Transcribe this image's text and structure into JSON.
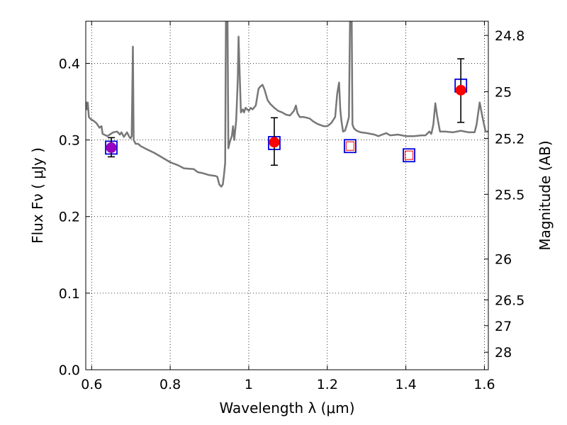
{
  "chart_data": {
    "type": "scatter",
    "xlabel": "Wavelength  λ (μm)",
    "ylabel": "Flux  Fν  ( μJy )",
    "ylabel_right": "Magnitude (AB)",
    "xlim": [
      0.585,
      1.61
    ],
    "ylim": [
      0.0,
      0.455
    ],
    "grid": true,
    "x_ticks": [
      0.6,
      0.8,
      1.0,
      1.2,
      1.4,
      1.6
    ],
    "x_tick_labels": [
      "0.6",
      "0.8",
      "1",
      "1.2",
      "1.4",
      "1.6"
    ],
    "y_ticks": [
      0.0,
      0.1,
      0.2,
      0.3,
      0.4
    ],
    "y_tick_labels": [
      "0.0",
      "0.1",
      "0.2",
      "0.3",
      "0.4"
    ],
    "mag_ticks": [
      24.8,
      25,
      25.2,
      25.5,
      26,
      26.5,
      27,
      28
    ],
    "mag_tick_labels": [
      "24.8",
      "25",
      "25.2",
      "25.5",
      "26",
      "26.5",
      "27",
      "28"
    ],
    "series": [
      {
        "kind": "line",
        "color": "#777777",
        "points": [
          [
            0.585,
            0.35
          ],
          [
            0.588,
            0.34
          ],
          [
            0.59,
            0.349
          ],
          [
            0.593,
            0.33
          ],
          [
            0.598,
            0.327
          ],
          [
            0.605,
            0.325
          ],
          [
            0.612,
            0.322
          ],
          [
            0.62,
            0.316
          ],
          [
            0.625,
            0.318
          ],
          [
            0.628,
            0.308
          ],
          [
            0.64,
            0.305
          ],
          [
            0.655,
            0.31
          ],
          [
            0.665,
            0.311
          ],
          [
            0.672,
            0.307
          ],
          [
            0.676,
            0.31
          ],
          [
            0.682,
            0.304
          ],
          [
            0.69,
            0.31
          ],
          [
            0.696,
            0.304
          ],
          [
            0.699,
            0.302
          ],
          [
            0.702,
            0.305
          ],
          [
            0.704,
            0.38
          ],
          [
            0.705,
            0.422
          ],
          [
            0.707,
            0.3
          ],
          [
            0.712,
            0.295
          ],
          [
            0.718,
            0.295
          ],
          [
            0.725,
            0.292
          ],
          [
            0.74,
            0.288
          ],
          [
            0.76,
            0.283
          ],
          [
            0.78,
            0.277
          ],
          [
            0.8,
            0.271
          ],
          [
            0.82,
            0.267
          ],
          [
            0.835,
            0.263
          ],
          [
            0.86,
            0.262
          ],
          [
            0.87,
            0.258
          ],
          [
            0.88,
            0.257
          ],
          [
            0.9,
            0.254
          ],
          [
            0.915,
            0.253
          ],
          [
            0.92,
            0.252
          ],
          [
            0.925,
            0.242
          ],
          [
            0.93,
            0.239
          ],
          [
            0.934,
            0.242
          ],
          [
            0.937,
            0.255
          ],
          [
            0.94,
            0.27
          ],
          [
            0.942,
            0.46
          ],
          [
            0.946,
            0.46
          ],
          [
            0.948,
            0.289
          ],
          [
            0.952,
            0.298
          ],
          [
            0.957,
            0.305
          ],
          [
            0.96,
            0.318
          ],
          [
            0.963,
            0.3
          ],
          [
            0.968,
            0.325
          ],
          [
            0.97,
            0.35
          ],
          [
            0.972,
            0.38
          ],
          [
            0.974,
            0.435
          ],
          [
            0.976,
            0.4
          ],
          [
            0.98,
            0.336
          ],
          [
            0.985,
            0.34
          ],
          [
            0.988,
            0.336
          ],
          [
            0.992,
            0.342
          ],
          [
            1.0,
            0.338
          ],
          [
            1.005,
            0.342
          ],
          [
            1.01,
            0.34
          ],
          [
            1.018,
            0.345
          ],
          [
            1.025,
            0.367
          ],
          [
            1.03,
            0.37
          ],
          [
            1.035,
            0.372
          ],
          [
            1.04,
            0.366
          ],
          [
            1.048,
            0.352
          ],
          [
            1.055,
            0.347
          ],
          [
            1.065,
            0.342
          ],
          [
            1.075,
            0.338
          ],
          [
            1.085,
            0.336
          ],
          [
            1.095,
            0.333
          ],
          [
            1.105,
            0.332
          ],
          [
            1.115,
            0.338
          ],
          [
            1.12,
            0.345
          ],
          [
            1.124,
            0.335
          ],
          [
            1.13,
            0.33
          ],
          [
            1.14,
            0.33
          ],
          [
            1.155,
            0.328
          ],
          [
            1.165,
            0.324
          ],
          [
            1.175,
            0.321
          ],
          [
            1.19,
            0.318
          ],
          [
            1.2,
            0.318
          ],
          [
            1.21,
            0.322
          ],
          [
            1.22,
            0.33
          ],
          [
            1.225,
            0.36
          ],
          [
            1.23,
            0.375
          ],
          [
            1.233,
            0.34
          ],
          [
            1.236,
            0.325
          ],
          [
            1.24,
            0.311
          ],
          [
            1.245,
            0.312
          ],
          [
            1.25,
            0.32
          ],
          [
            1.255,
            0.33
          ],
          [
            1.258,
            0.46
          ],
          [
            1.262,
            0.46
          ],
          [
            1.264,
            0.32
          ],
          [
            1.268,
            0.315
          ],
          [
            1.275,
            0.312
          ],
          [
            1.285,
            0.31
          ],
          [
            1.3,
            0.309
          ],
          [
            1.32,
            0.307
          ],
          [
            1.33,
            0.305
          ],
          [
            1.34,
            0.307
          ],
          [
            1.35,
            0.309
          ],
          [
            1.36,
            0.306
          ],
          [
            1.38,
            0.307
          ],
          [
            1.4,
            0.305
          ],
          [
            1.42,
            0.305
          ],
          [
            1.44,
            0.306
          ],
          [
            1.45,
            0.306
          ],
          [
            1.46,
            0.311
          ],
          [
            1.465,
            0.308
          ],
          [
            1.47,
            0.32
          ],
          [
            1.475,
            0.348
          ],
          [
            1.48,
            0.33
          ],
          [
            1.487,
            0.311
          ],
          [
            1.5,
            0.311
          ],
          [
            1.52,
            0.31
          ],
          [
            1.54,
            0.312
          ],
          [
            1.56,
            0.31
          ],
          [
            1.575,
            0.31
          ],
          [
            1.58,
            0.32
          ],
          [
            1.588,
            0.349
          ],
          [
            1.595,
            0.33
          ],
          [
            1.603,
            0.311
          ],
          [
            1.61,
            0.311
          ]
        ]
      },
      {
        "kind": "model-photometry",
        "marker": "open-square",
        "color": "#0000dd",
        "x": [
          0.65,
          1.065,
          1.258,
          1.408,
          1.54
        ],
        "y": [
          0.29,
          0.296,
          0.292,
          0.28,
          0.371
        ]
      },
      {
        "kind": "limits",
        "marker": "small-open-square",
        "color": "#ff3333",
        "x": [
          1.258,
          1.408
        ],
        "y": [
          0.292,
          0.28
        ]
      },
      {
        "kind": "detections",
        "marker": "filled-circle",
        "x": [
          0.65,
          1.065,
          1.54
        ],
        "y": [
          0.29,
          0.297,
          0.365
        ],
        "yerr": [
          [
            0.012,
            0.013
          ],
          [
            0.03,
            0.032
          ],
          [
            0.042,
            0.041
          ]
        ],
        "colors": [
          "#9900bb",
          "#ff0000",
          "#ff0000"
        ]
      }
    ]
  }
}
